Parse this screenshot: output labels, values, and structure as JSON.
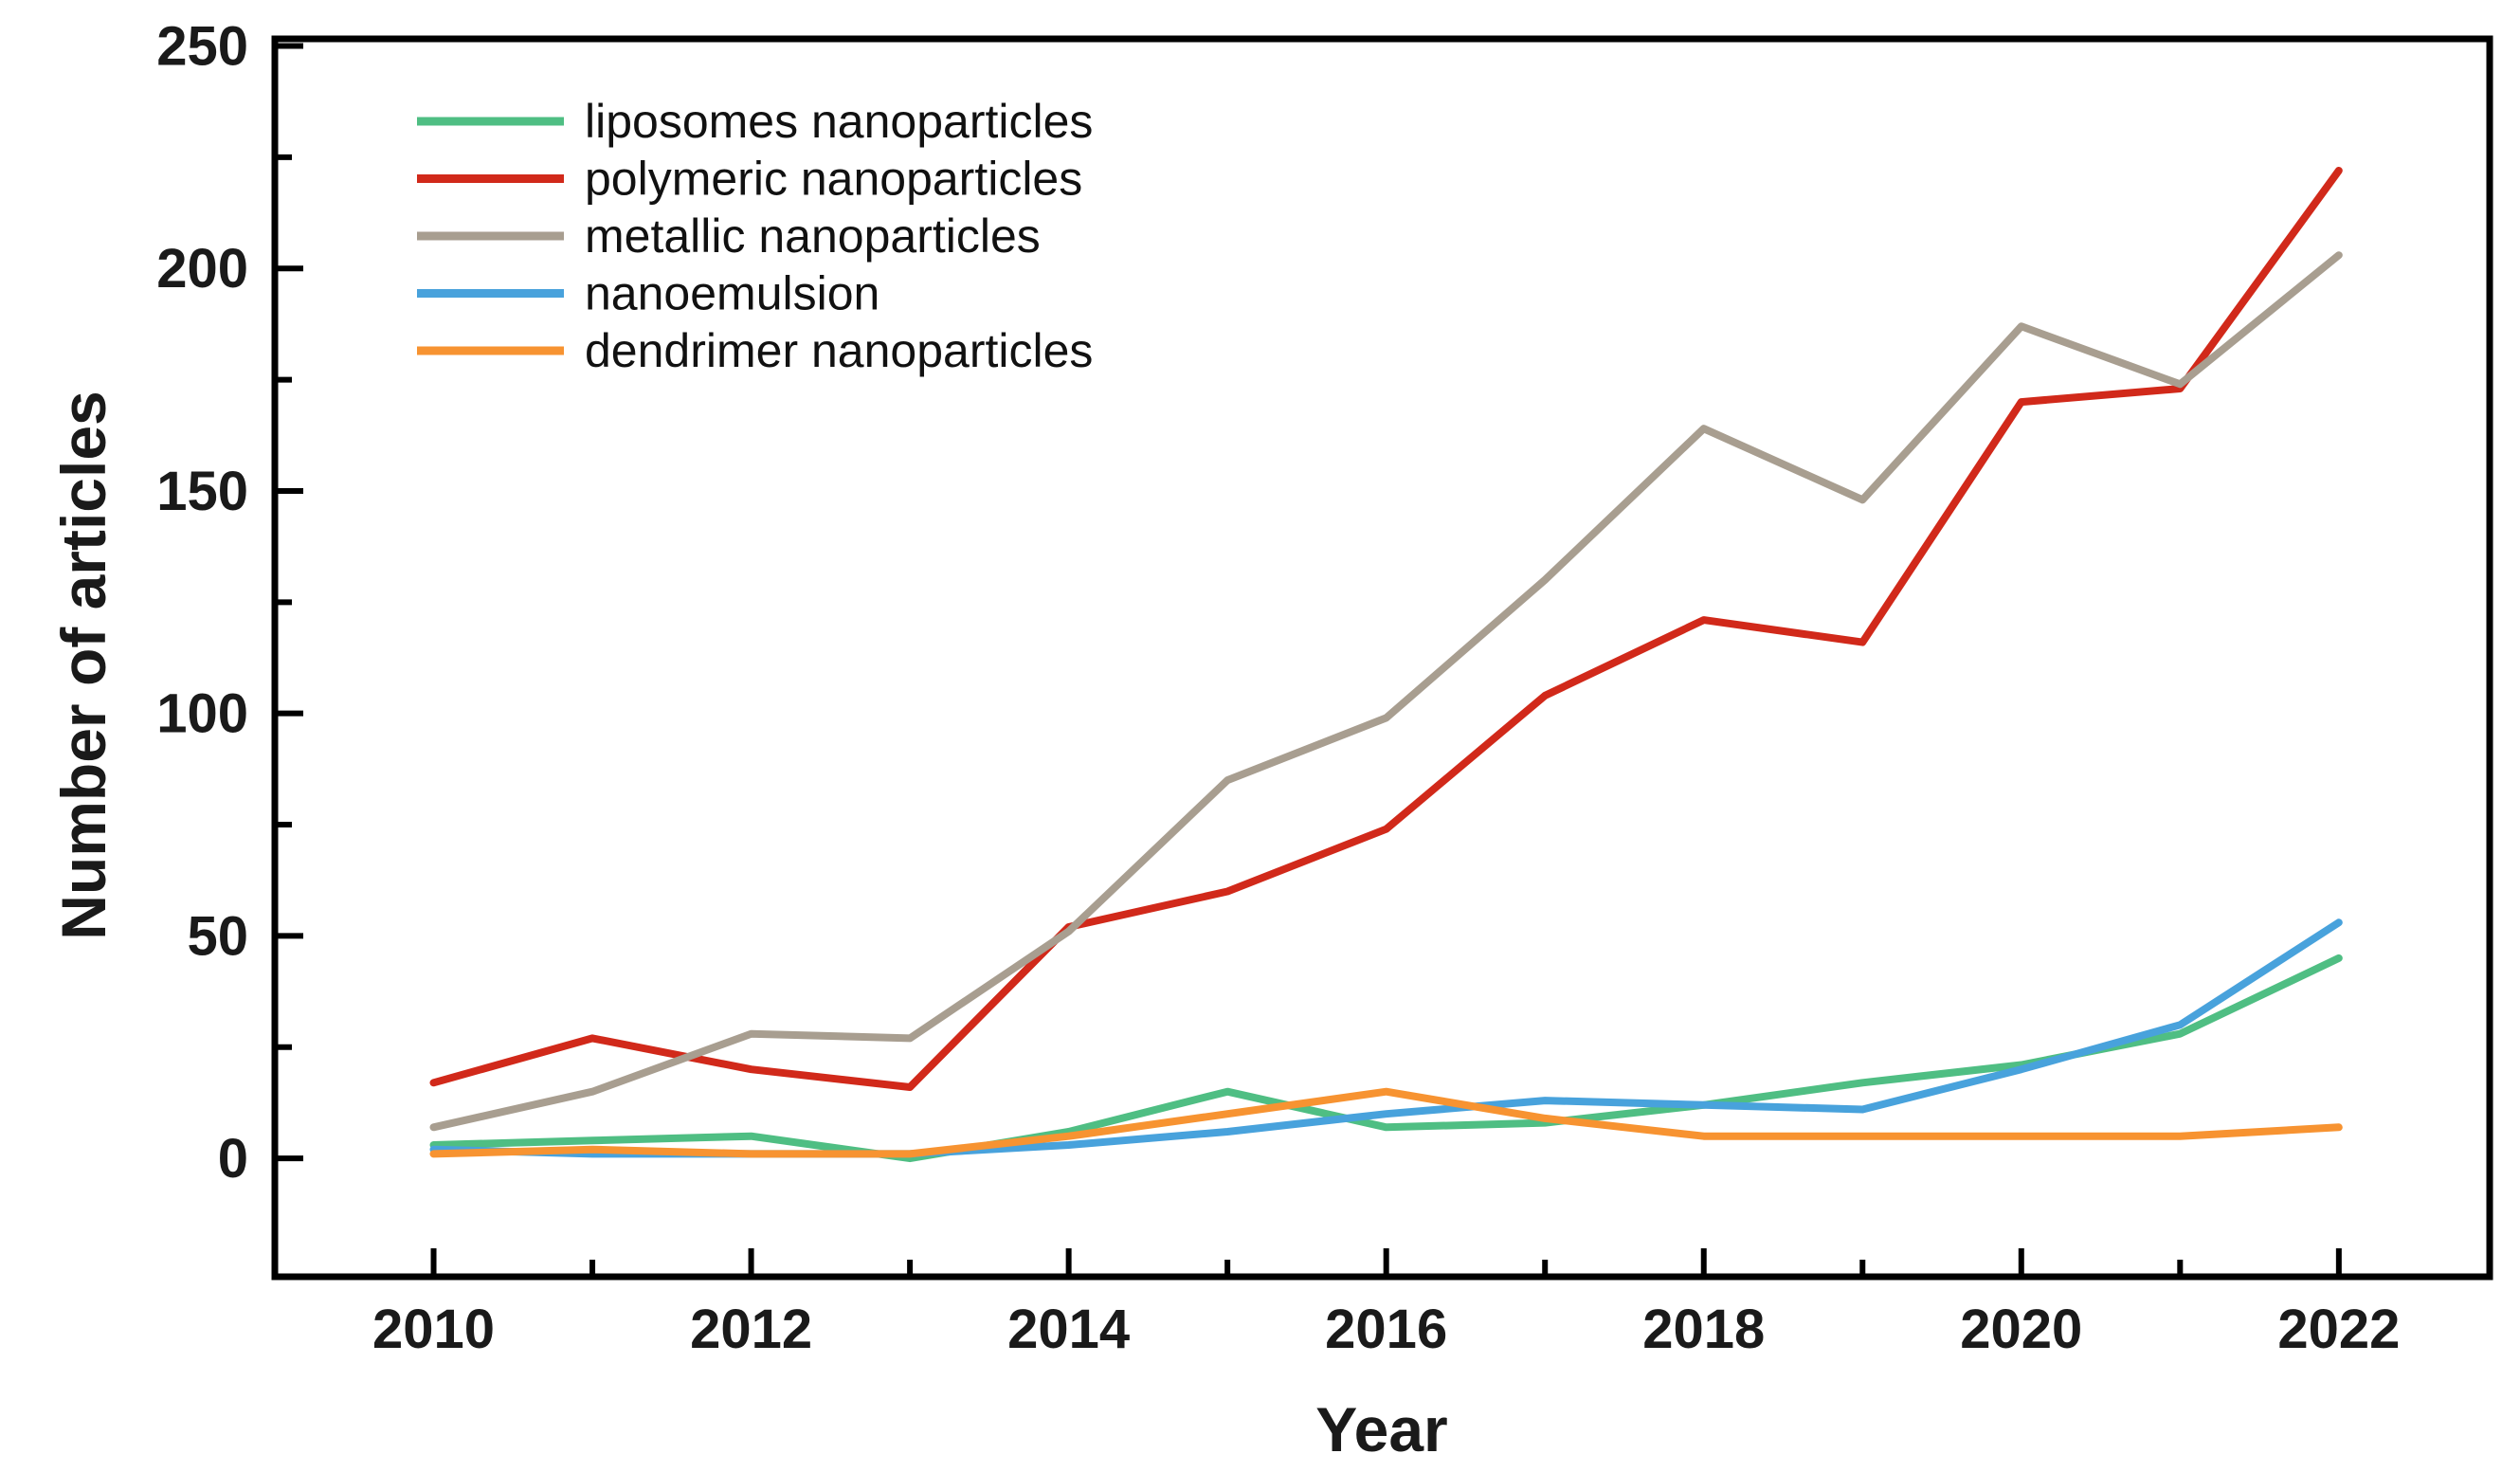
{
  "chart_data": {
    "type": "line",
    "title": "",
    "xlabel": "Year",
    "ylabel": "Number of articles",
    "x": [
      2010,
      2011,
      2012,
      2013,
      2014,
      2015,
      2016,
      2017,
      2018,
      2019,
      2020,
      2021,
      2022
    ],
    "series": [
      {
        "name": "liposomes nanoparticles",
        "color": "#4fbe83",
        "values": [
          3,
          4,
          5,
          0,
          6,
          15,
          7,
          8,
          12,
          17,
          21,
          28,
          45
        ]
      },
      {
        "name": "polymeric nanoparticles",
        "color": "#d1291a",
        "values": [
          17,
          27,
          20,
          16,
          52,
          60,
          74,
          104,
          121,
          116,
          170,
          173,
          222
        ]
      },
      {
        "name": "metallic nanoparticles",
        "color": "#a89e90",
        "values": [
          7,
          15,
          28,
          27,
          51,
          85,
          99,
          130,
          164,
          148,
          187,
          174,
          203
        ]
      },
      {
        "name": "nanoemulsion",
        "color": "#48a2dc",
        "values": [
          2,
          1,
          1,
          1,
          3,
          6,
          10,
          13,
          12,
          11,
          20,
          30,
          53
        ]
      },
      {
        "name": "dendrimer nanoparticles",
        "color": "#f79331",
        "values": [
          1,
          2,
          1,
          1,
          5,
          10,
          15,
          9,
          5,
          5,
          5,
          5,
          7
        ]
      }
    ],
    "x_ticks_major": [
      2010,
      2012,
      2014,
      2016,
      2018,
      2020,
      2022
    ],
    "x_ticks_minor": [
      2011,
      2013,
      2015,
      2017,
      2019,
      2021
    ],
    "y_ticks_major": [
      0,
      50,
      100,
      150,
      200,
      250
    ],
    "y_ticks_minor": [
      25,
      75,
      125,
      175,
      225
    ],
    "xlim": [
      2009.0,
      2022.95
    ],
    "ylim": [
      -26.6,
      251.6
    ],
    "grid": "off",
    "legend_position": "top-left",
    "frame_color": "#000000",
    "tick_label_color": "#1a1a1a",
    "background_color": "#ffffff"
  }
}
